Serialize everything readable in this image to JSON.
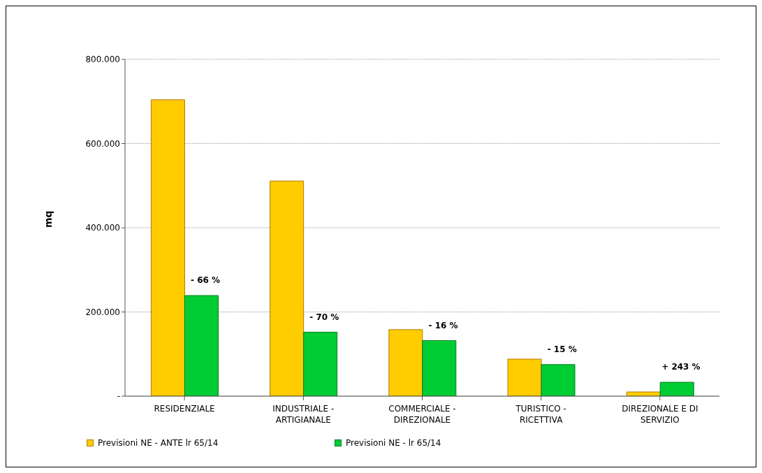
{
  "chart_data": {
    "type": "bar",
    "ylabel": "mq",
    "categories": [
      "RESIDENZIALE",
      "INDUSTRIALE - ARTIGIANALE",
      "COMMERCIALE - DIREZIONALE",
      "TURISTICO - RICETTIVA",
      "DIREZIONALE E DI SERVIZIO"
    ],
    "series": [
      {
        "name": "Previsioni NE - ANTE lr 65/14",
        "color": "#ffcc00",
        "values": [
          704000,
          511000,
          158000,
          88000,
          10000
        ]
      },
      {
        "name": "Previsioni NE - lr 65/14",
        "color": "#00cc33",
        "values": [
          239000,
          152000,
          132000,
          75000,
          33000
        ]
      }
    ],
    "ylim": [
      0,
      800000
    ],
    "yticks": [
      {
        "value": 0,
        "label": "-"
      },
      {
        "value": 200000,
        "label": "200.000"
      },
      {
        "value": 400000,
        "label": "400.000"
      },
      {
        "value": 600000,
        "label": "600.000"
      },
      {
        "value": 800000,
        "label": "800.000"
      }
    ],
    "grid": "y",
    "legend": "bottom",
    "annotations": [
      "- 66 %",
      "- 70 %",
      "- 16 %",
      "- 15 %",
      "+ 243 %"
    ]
  }
}
